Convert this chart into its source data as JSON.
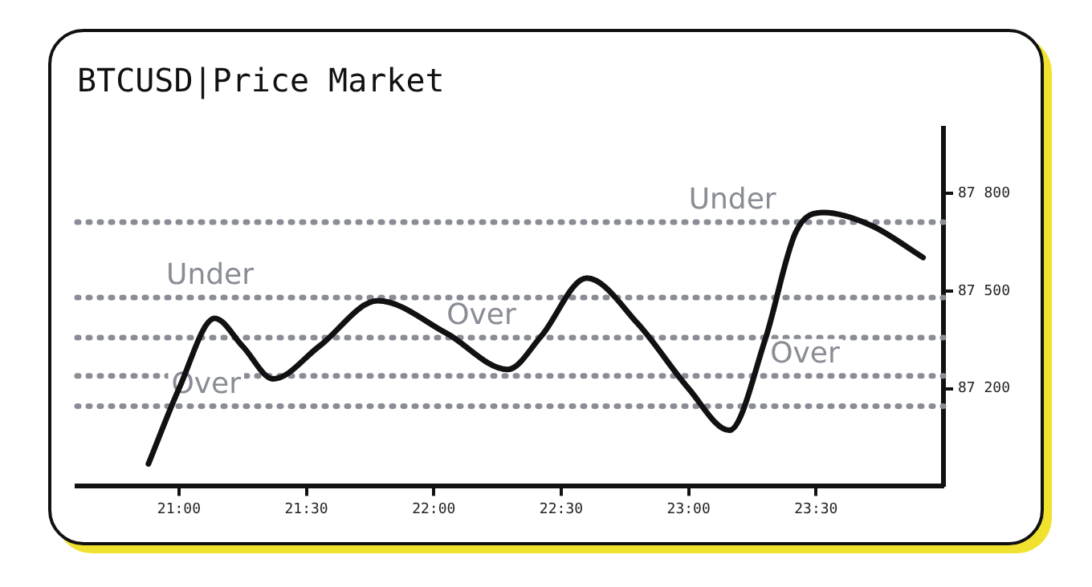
{
  "chart_data": {
    "type": "line",
    "title": "BTCUSD|Price Market",
    "x": [
      20.88,
      21.0,
      21.14,
      21.25,
      21.37,
      21.55,
      21.78,
      22.05,
      22.29,
      22.42,
      22.6,
      22.8,
      23.0,
      23.16,
      23.3,
      23.42,
      23.53,
      23.72,
      23.92
    ],
    "series": [
      {
        "color": "#111111",
        "values": [
          86969,
          87200,
          87416,
          87330,
          87230,
          87330,
          87470,
          87370,
          87259,
          87360,
          87540,
          87400,
          87200,
          87072,
          87350,
          87680,
          87741,
          87700,
          87603
        ]
      }
    ],
    "xlim": [
      20.6,
      24.0
    ],
    "ylim": [
      86900,
      88000
    ],
    "xticks": [
      {
        "value": 21,
        "label": "21:00"
      },
      {
        "value": 21.5,
        "label": "21:30"
      },
      {
        "value": 22,
        "label": "22:00"
      },
      {
        "value": 22.5,
        "label": "22:30"
      },
      {
        "value": 23,
        "label": "23:00"
      },
      {
        "value": 23.5,
        "label": "23:30"
      }
    ],
    "yticks": [
      {
        "value": 87200,
        "label": "87 200"
      },
      {
        "value": 87500,
        "label": "87 500"
      },
      {
        "value": 87800,
        "label": "87 800"
      }
    ],
    "ref_lines": [
      {
        "axis": "y",
        "value": 87480,
        "color": "#8a8d96",
        "line_style": "dotted"
      },
      {
        "axis": "y",
        "value": 87357,
        "color": "#8a8d96",
        "line_style": "dotted"
      },
      {
        "axis": "y",
        "value": 87146,
        "color": "#8a8d96",
        "line_style": "dotted"
      },
      {
        "axis": "y",
        "value": 87712,
        "color": "#8a8d96",
        "line_style": "dotted"
      },
      {
        "axis": "y",
        "value": 87239,
        "color": "#8a8d96",
        "line_style": "dotted"
      }
    ],
    "annotations": [
      {
        "text": "Under",
        "x": 20.95,
        "y": 87480
      },
      {
        "text": "Over",
        "x": 22.05,
        "y": 87357
      },
      {
        "text": "Over",
        "x": 20.97,
        "y": 87146
      },
      {
        "text": "Under",
        "x": 23.0,
        "y": 87712
      },
      {
        "text": "Over",
        "x": 23.32,
        "y": 87239
      }
    ],
    "grid": false,
    "legend": false,
    "marker": "none",
    "line_style": "solid"
  }
}
